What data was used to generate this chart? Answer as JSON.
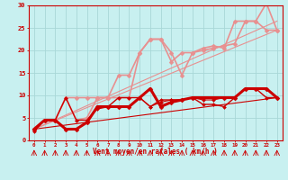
{
  "background_color": "#c8f0f0",
  "grid_color": "#a8d8d8",
  "xlabel": "Vent moyen/en rafales ( km/h )",
  "xlabel_color": "#cc0000",
  "tick_color": "#cc0000",
  "xlim": [
    -0.5,
    23.5
  ],
  "ylim": [
    0,
    30
  ],
  "yticks": [
    0,
    5,
    10,
    15,
    20,
    25,
    30
  ],
  "xticks": [
    0,
    1,
    2,
    3,
    4,
    5,
    6,
    7,
    8,
    9,
    10,
    11,
    12,
    13,
    14,
    15,
    16,
    17,
    18,
    19,
    20,
    21,
    22,
    23
  ],
  "lines": [
    {
      "x": [
        0,
        1,
        2,
        3,
        4,
        5,
        6,
        7,
        8,
        9,
        10,
        11,
        12,
        13,
        14,
        15,
        16,
        17,
        18,
        19,
        20,
        21,
        22,
        23
      ],
      "y": [
        2.0,
        4.5,
        4.5,
        9.5,
        4.5,
        4.5,
        7.0,
        7.5,
        9.5,
        9.5,
        9.5,
        7.5,
        9.0,
        9.0,
        9.0,
        9.5,
        8.0,
        8.0,
        7.5,
        9.5,
        11.5,
        11.5,
        9.5,
        9.5
      ],
      "color": "#cc0000",
      "lw": 1.0,
      "marker": "D",
      "ms": 2.0,
      "zorder": 3
    },
    {
      "x": [
        0,
        1,
        2,
        3,
        4,
        5,
        6,
        7,
        8,
        9,
        10,
        11,
        12,
        13,
        14,
        15,
        16,
        17,
        18,
        19,
        20,
        21,
        22,
        23
      ],
      "y": [
        2.5,
        4.5,
        4.5,
        2.5,
        2.5,
        4.0,
        7.5,
        7.5,
        7.5,
        7.5,
        9.5,
        11.5,
        7.5,
        8.5,
        9.0,
        9.5,
        9.5,
        9.5,
        9.5,
        9.5,
        11.5,
        11.5,
        11.5,
        9.5
      ],
      "color": "#cc0000",
      "lw": 2.2,
      "marker": "D",
      "ms": 2.5,
      "zorder": 4
    },
    {
      "x": [
        0,
        1,
        2,
        3,
        4,
        5,
        6,
        7,
        8,
        9,
        10,
        11,
        12,
        13,
        14,
        15,
        16,
        17,
        18,
        19,
        20,
        21,
        22,
        23
      ],
      "y": [
        2.5,
        4.5,
        4.5,
        2.5,
        2.5,
        4.0,
        7.5,
        7.5,
        7.5,
        7.5,
        9.5,
        7.5,
        8.5,
        9.0,
        9.0,
        9.5,
        9.0,
        9.0,
        9.5,
        9.5,
        11.5,
        11.5,
        11.5,
        9.5
      ],
      "color": "#cc0000",
      "lw": 0.8,
      "marker": "D",
      "ms": 2.0,
      "zorder": 3
    },
    {
      "x": [
        0,
        1,
        2,
        3,
        4,
        5,
        6,
        7,
        8,
        9,
        10,
        11,
        12,
        13,
        14,
        15,
        16,
        17,
        18,
        19,
        20,
        21,
        22,
        23
      ],
      "y": [
        2.5,
        4.5,
        4.5,
        9.5,
        9.5,
        9.5,
        9.5,
        9.5,
        9.5,
        9.5,
        19.5,
        22.5,
        22.5,
        19.5,
        14.5,
        19.5,
        20.0,
        20.5,
        21.0,
        21.5,
        26.5,
        26.5,
        30.5,
        24.5
      ],
      "color": "#e89090",
      "lw": 1.2,
      "marker": "D",
      "ms": 2.5,
      "zorder": 2
    },
    {
      "x": [
        0,
        1,
        2,
        3,
        4,
        5,
        6,
        7,
        8,
        9,
        10,
        11,
        12,
        13,
        14,
        15,
        16,
        17,
        18,
        19,
        20,
        21,
        22,
        23
      ],
      "y": [
        2.5,
        4.5,
        4.5,
        9.5,
        4.5,
        5.0,
        9.5,
        9.5,
        14.5,
        14.5,
        19.5,
        22.5,
        22.5,
        17.5,
        19.5,
        19.5,
        20.5,
        21.0,
        20.5,
        26.5,
        26.5,
        26.5,
        24.5,
        24.5
      ],
      "color": "#e89090",
      "lw": 1.2,
      "marker": "D",
      "ms": 2.5,
      "zorder": 2
    },
    {
      "x": [
        0,
        23
      ],
      "y": [
        2.5,
        9.5
      ],
      "color": "#cc0000",
      "lw": 0.8,
      "marker": null,
      "ms": 0,
      "zorder": 1
    },
    {
      "x": [
        0,
        23
      ],
      "y": [
        2.5,
        24.5
      ],
      "color": "#e89090",
      "lw": 0.8,
      "marker": null,
      "ms": 0,
      "zorder": 1
    },
    {
      "x": [
        0,
        23
      ],
      "y": [
        2.5,
        26.5
      ],
      "color": "#e89090",
      "lw": 0.8,
      "marker": null,
      "ms": 0,
      "zorder": 1
    }
  ]
}
